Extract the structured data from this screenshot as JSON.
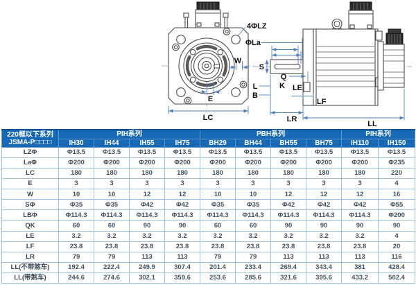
{
  "drawing": {
    "labels": {
      "lz4": "4ΦLZ",
      "la": "ΦLa",
      "w": "W",
      "e": "E",
      "lc": "LC",
      "s": "S",
      "q": "Q",
      "k": "K",
      "l": "L",
      "b": "B",
      "le": "LE",
      "lf": "LF",
      "lr": "LR",
      "ll": "LL"
    }
  },
  "table": {
    "header": {
      "title_line1": "220框以下系列",
      "title_line2": "JSMA-P□□□□",
      "groups": [
        {
          "label": "PIH系列",
          "span": 4
        },
        {
          "label": "PBH系列",
          "span": 4
        },
        {
          "label": "PIH系列",
          "span": 2
        }
      ],
      "columns": [
        "IH30",
        "IH44",
        "IH55",
        "IH75",
        "BH29",
        "BH44",
        "BH55",
        "BH75",
        "IH110",
        "IH150"
      ]
    },
    "rows": [
      {
        "label": "LZΦ",
        "values": [
          "Φ13.5",
          "Φ13.5",
          "Φ13.5",
          "Φ13.5",
          "Φ13.5",
          "Φ13.5",
          "Φ13.5",
          "Φ13.5",
          "Φ13.5",
          "Φ13.5"
        ]
      },
      {
        "label": "LaΦ",
        "values": [
          "Φ200",
          "Φ200",
          "Φ200",
          "Φ200",
          "Φ200",
          "Φ200",
          "Φ200",
          "Φ200",
          "Φ200",
          "Φ235"
        ]
      },
      {
        "label": "LC",
        "values": [
          "180",
          "180",
          "180",
          "180",
          "180",
          "180",
          "180",
          "180",
          "180",
          "220"
        ]
      },
      {
        "label": "E",
        "values": [
          "3",
          "3",
          "3",
          "3",
          "3",
          "3",
          "3",
          "3",
          "3",
          "4"
        ]
      },
      {
        "label": "W",
        "values": [
          "10",
          "10",
          "12",
          "12",
          "10",
          "10",
          "12",
          "12",
          "12",
          "16"
        ]
      },
      {
        "label": "SΦ",
        "values": [
          "Φ35",
          "Φ35",
          "Φ42",
          "Φ42",
          "Φ35",
          "Φ35",
          "Φ42",
          "Φ42",
          "Φ42",
          "Φ55"
        ]
      },
      {
        "label": "LBΦ",
        "values": [
          "Φ114.3",
          "Φ114.3",
          "Φ114.3",
          "Φ114.3",
          "Φ114.3",
          "Φ114.3",
          "Φ114.3",
          "Φ114.3",
          "Φ114.3",
          "Φ200"
        ]
      },
      {
        "label": "QK",
        "values": [
          "60",
          "60",
          "90",
          "90",
          "60",
          "60",
          "90",
          "90",
          "90",
          "90"
        ]
      },
      {
        "label": "LE",
        "values": [
          "3.2",
          "3.2",
          "3.2",
          "3.2",
          "3.2",
          "3.2",
          "3.2",
          "3.2",
          "3.2",
          "4"
        ]
      },
      {
        "label": "LF",
        "values": [
          "23.8",
          "23.8",
          "23.8",
          "23.8",
          "23.8",
          "23.8",
          "23.8",
          "23.8",
          "23.8",
          "20"
        ]
      },
      {
        "label": "LR",
        "values": [
          "79",
          "79",
          "113",
          "113",
          "79",
          "79",
          "113",
          "113",
          "113",
          "116"
        ]
      },
      {
        "label": "LL(不带煞车)",
        "values": [
          "192.4",
          "222.4",
          "249.9",
          "307.4",
          "201.4",
          "233.4",
          "269.4",
          "343.4",
          "381",
          "428.4"
        ]
      },
      {
        "label": "LL(带煞车)",
        "values": [
          "244.6",
          "274.6",
          "302.1",
          "359.6",
          "253.6",
          "285.6",
          "321.6",
          "395.6",
          "433.2",
          "502.4"
        ]
      }
    ]
  },
  "colors": {
    "header_bg": "#1769b5",
    "header_text": "#ffffff",
    "header_top_border": "#0f4f99",
    "cell_border": "#9cc0e4",
    "cell_text": "#44525f",
    "dimension_line": "#4f80c2",
    "geometry_line": "#4b4b4b"
  }
}
